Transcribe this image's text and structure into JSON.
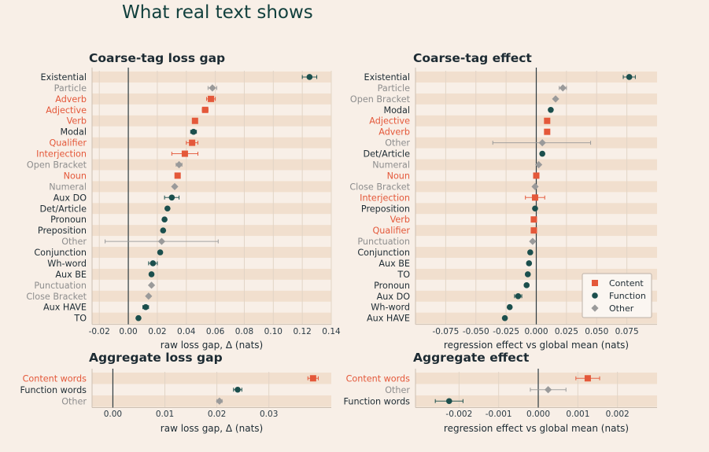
{
  "page_title": "What real text shows",
  "colors": {
    "content": "#e4583a",
    "function": "#1b4f4d",
    "other": "#9a9a9a",
    "stripe": "#f1dfce",
    "frame": "#cdbfb2"
  },
  "legend": [
    "Content",
    "Function",
    "Other"
  ],
  "chart_data": [
    {
      "title": "Coarse-tag loss gap",
      "type": "dot-errorbar",
      "xlabel": "raw loss gap, Δ (nats)",
      "ylabel": "",
      "xlim": [
        -0.025,
        0.14
      ],
      "xticks": [
        "-0.02",
        "0.00",
        "0.02",
        "0.04",
        "0.06",
        "0.08",
        "0.10",
        "0.12",
        "0.14"
      ],
      "grid": true,
      "reference_line": 0,
      "points": [
        {
          "label": "Existential",
          "kind": "function",
          "value": 0.125,
          "lo": 0.12,
          "hi": 0.13
        },
        {
          "label": "Particle",
          "kind": "other",
          "value": 0.058,
          "lo": 0.055,
          "hi": 0.061
        },
        {
          "label": "Adverb",
          "kind": "content",
          "value": 0.057,
          "lo": 0.054,
          "hi": 0.06
        },
        {
          "label": "Adjective",
          "kind": "content",
          "value": 0.053,
          "lo": 0.051,
          "hi": 0.055
        },
        {
          "label": "Verb",
          "kind": "content",
          "value": 0.046,
          "lo": 0.045,
          "hi": 0.047
        },
        {
          "label": "Modal",
          "kind": "function",
          "value": 0.045,
          "lo": 0.043,
          "hi": 0.047
        },
        {
          "label": "Qualifier",
          "kind": "content",
          "value": 0.044,
          "lo": 0.04,
          "hi": 0.048
        },
        {
          "label": "Interjection",
          "kind": "content",
          "value": 0.039,
          "lo": 0.03,
          "hi": 0.048
        },
        {
          "label": "Open Bracket",
          "kind": "other",
          "value": 0.035,
          "lo": 0.033,
          "hi": 0.037
        },
        {
          "label": "Noun",
          "kind": "content",
          "value": 0.034,
          "lo": 0.033,
          "hi": 0.035
        },
        {
          "label": "Numeral",
          "kind": "other",
          "value": 0.032,
          "lo": 0.031,
          "hi": 0.033
        },
        {
          "label": "Aux DO",
          "kind": "function",
          "value": 0.03,
          "lo": 0.025,
          "hi": 0.035
        },
        {
          "label": "Det/Article",
          "kind": "function",
          "value": 0.027,
          "lo": 0.026,
          "hi": 0.028
        },
        {
          "label": "Pronoun",
          "kind": "function",
          "value": 0.025,
          "lo": 0.024,
          "hi": 0.026
        },
        {
          "label": "Preposition",
          "kind": "function",
          "value": 0.024,
          "lo": 0.023,
          "hi": 0.025
        },
        {
          "label": "Other",
          "kind": "other",
          "value": 0.023,
          "lo": -0.016,
          "hi": 0.062
        },
        {
          "label": "Conjunction",
          "kind": "function",
          "value": 0.022,
          "lo": 0.021,
          "hi": 0.023
        },
        {
          "label": "Wh-word",
          "kind": "function",
          "value": 0.017,
          "lo": 0.014,
          "hi": 0.02
        },
        {
          "label": "Aux BE",
          "kind": "function",
          "value": 0.016,
          "lo": 0.015,
          "hi": 0.017
        },
        {
          "label": "Punctuation",
          "kind": "other",
          "value": 0.016,
          "lo": 0.015,
          "hi": 0.017
        },
        {
          "label": "Close Bracket",
          "kind": "other",
          "value": 0.014,
          "lo": 0.013,
          "hi": 0.015
        },
        {
          "label": "Aux HAVE",
          "kind": "function",
          "value": 0.012,
          "lo": 0.01,
          "hi": 0.014
        },
        {
          "label": "TO",
          "kind": "function",
          "value": 0.007,
          "lo": 0.006,
          "hi": 0.008
        }
      ]
    },
    {
      "title": "Coarse-tag effect",
      "type": "dot-errorbar",
      "xlabel": "regression effect vs global mean (nats)",
      "ylabel": "",
      "xlim": [
        -0.1,
        0.1
      ],
      "xticks": [
        "-0.075",
        "-0.050",
        "-0.025",
        "0.000",
        "0.025",
        "0.050",
        "0.075"
      ],
      "grid": true,
      "reference_line": 0,
      "legend_position": "bottom-right",
      "points": [
        {
          "label": "Existential",
          "kind": "function",
          "value": 0.077,
          "lo": 0.072,
          "hi": 0.082
        },
        {
          "label": "Particle",
          "kind": "other",
          "value": 0.022,
          "lo": 0.019,
          "hi": 0.025
        },
        {
          "label": "Open Bracket",
          "kind": "other",
          "value": 0.016,
          "lo": 0.015,
          "hi": 0.017
        },
        {
          "label": "Modal",
          "kind": "function",
          "value": 0.012,
          "lo": 0.011,
          "hi": 0.013
        },
        {
          "label": "Adjective",
          "kind": "content",
          "value": 0.009,
          "lo": 0.008,
          "hi": 0.01
        },
        {
          "label": "Adverb",
          "kind": "content",
          "value": 0.009,
          "lo": 0.008,
          "hi": 0.01
        },
        {
          "label": "Other",
          "kind": "other",
          "value": 0.005,
          "lo": -0.036,
          "hi": 0.045
        },
        {
          "label": "Det/Article",
          "kind": "function",
          "value": 0.005,
          "lo": 0.004,
          "hi": 0.006
        },
        {
          "label": "Numeral",
          "kind": "other",
          "value": 0.002,
          "lo": 0.001,
          "hi": 0.003
        },
        {
          "label": "Noun",
          "kind": "content",
          "value": 0.0,
          "lo": -0.001,
          "hi": 0.001
        },
        {
          "label": "Close Bracket",
          "kind": "other",
          "value": -0.001,
          "lo": -0.002,
          "hi": 0.0
        },
        {
          "label": "Interjection",
          "kind": "content",
          "value": -0.001,
          "lo": -0.009,
          "hi": 0.007
        },
        {
          "label": "Preposition",
          "kind": "function",
          "value": -0.001,
          "lo": -0.002,
          "hi": 0.0
        },
        {
          "label": "Verb",
          "kind": "content",
          "value": -0.002,
          "lo": -0.003,
          "hi": -0.001
        },
        {
          "label": "Qualifier",
          "kind": "content",
          "value": -0.002,
          "lo": -0.004,
          "hi": 0.0
        },
        {
          "label": "Punctuation",
          "kind": "other",
          "value": -0.003,
          "lo": -0.004,
          "hi": -0.002
        },
        {
          "label": "Conjunction",
          "kind": "function",
          "value": -0.005,
          "lo": -0.006,
          "hi": -0.004
        },
        {
          "label": "Aux BE",
          "kind": "function",
          "value": -0.006,
          "lo": -0.007,
          "hi": -0.005
        },
        {
          "label": "TO",
          "kind": "function",
          "value": -0.007,
          "lo": -0.008,
          "hi": -0.006
        },
        {
          "label": "Pronoun",
          "kind": "function",
          "value": -0.008,
          "lo": -0.009,
          "hi": -0.007
        },
        {
          "label": "Aux DO",
          "kind": "function",
          "value": -0.015,
          "lo": -0.018,
          "hi": -0.012
        },
        {
          "label": "Wh-word",
          "kind": "function",
          "value": -0.022,
          "lo": -0.023,
          "hi": -0.021
        },
        {
          "label": "Aux HAVE",
          "kind": "function",
          "value": -0.026,
          "lo": -0.027,
          "hi": -0.025
        }
      ]
    },
    {
      "title": "Aggregate loss gap",
      "type": "dot-errorbar",
      "xlabel": "raw loss gap, Δ (nats)",
      "ylabel": "",
      "xlim": [
        -0.004,
        0.042
      ],
      "xticks": [
        "0.00",
        "0.01",
        "0.02",
        "0.03"
      ],
      "grid": true,
      "reference_line": 0,
      "points": [
        {
          "label": "Content words",
          "kind": "content",
          "value": 0.0385,
          "lo": 0.0375,
          "hi": 0.0395
        },
        {
          "label": "Function words",
          "kind": "function",
          "value": 0.024,
          "lo": 0.0232,
          "hi": 0.0248
        },
        {
          "label": "Other",
          "kind": "other",
          "value": 0.0205,
          "lo": 0.02,
          "hi": 0.021
        }
      ]
    },
    {
      "title": "Aggregate effect",
      "type": "dot-errorbar",
      "xlabel": "regression effect vs global mean (nats)",
      "ylabel": "",
      "xlim": [
        -0.0031,
        0.003
      ],
      "xticks": [
        "-0.002",
        "-0.001",
        "0.000",
        "0.001",
        "0.002"
      ],
      "grid": true,
      "reference_line": 0,
      "points": [
        {
          "label": "Content words",
          "kind": "content",
          "value": 0.00125,
          "lo": 0.00095,
          "hi": 0.00155
        },
        {
          "label": "Other",
          "kind": "other",
          "value": 0.00025,
          "lo": -0.0002,
          "hi": 0.0007
        },
        {
          "label": "Function words",
          "kind": "function",
          "value": -0.00225,
          "lo": -0.0026,
          "hi": -0.0019
        }
      ]
    }
  ]
}
